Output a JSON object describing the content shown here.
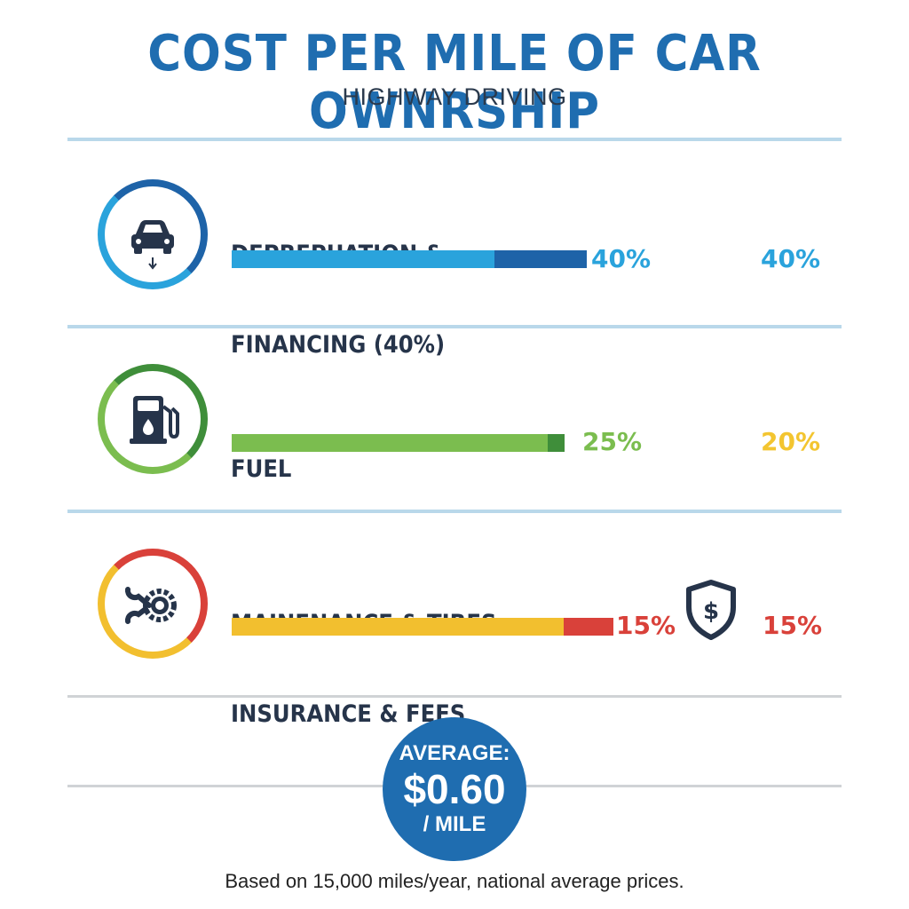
{
  "chart_data": {
    "type": "bar",
    "title": "COST PER MILE OF CAR OWNRSHIP",
    "subtitle": "HIGHWAY DRIVING",
    "categories": [
      {
        "id": "depreciation",
        "label_lines": [
          "DEPREPUATION &",
          "FINANCING (40%)"
        ],
        "icon": "car-icon",
        "segments": [
          {
            "value": 0.74,
            "color": "#2aa3dc"
          },
          {
            "value": 0.26,
            "color": "#1e63a8"
          }
        ],
        "value_label": "40%",
        "value_color": "#2aa3dc",
        "secondary_label": "40%",
        "secondary_color": "#2aa3dc",
        "bar_fraction": 0.4
      },
      {
        "id": "fuel",
        "label_lines": [
          "FUEL"
        ],
        "icon": "fuel-pump-icon",
        "segments": [
          {
            "value": 0.95,
            "color": "#7bbd4f"
          },
          {
            "value": 0.05,
            "color": "#3f8e3a"
          }
        ],
        "value_label": "25%",
        "value_color": "#7bbd4f",
        "secondary_label": "20%",
        "secondary_color": "#f3c530",
        "bar_fraction": 0.375
      },
      {
        "id": "maintenance",
        "label_lines": [
          "MAINENANCE & TIRES",
          "INSURANCE & FEES"
        ],
        "icon": "wrench-gear-icon",
        "segments": [
          {
            "value": 0.87,
            "color": "#f2bf2f"
          },
          {
            "value": 0.13,
            "color": "#d9413a"
          }
        ],
        "value_label": "15%",
        "value_color": "#d9413a",
        "secondary_label": "15%",
        "secondary_color": "#d9413a",
        "secondary_icon": "dollar-shield-icon",
        "bar_fraction": 0.43
      }
    ],
    "average": {
      "line1": "AVERAGE:",
      "value": "$0.60",
      "line3": "/ MILE"
    },
    "footnote": "Based on 15,000 miles/year, national average prices."
  },
  "colors": {
    "title": "#1f6db0",
    "blue": "#2aa3dc",
    "dark_blue": "#1e63a8",
    "green": "#7bbd4f",
    "dark_green": "#3f8e3a",
    "yellow": "#f2bf2f",
    "red": "#d9413a",
    "navy": "#26344a"
  }
}
